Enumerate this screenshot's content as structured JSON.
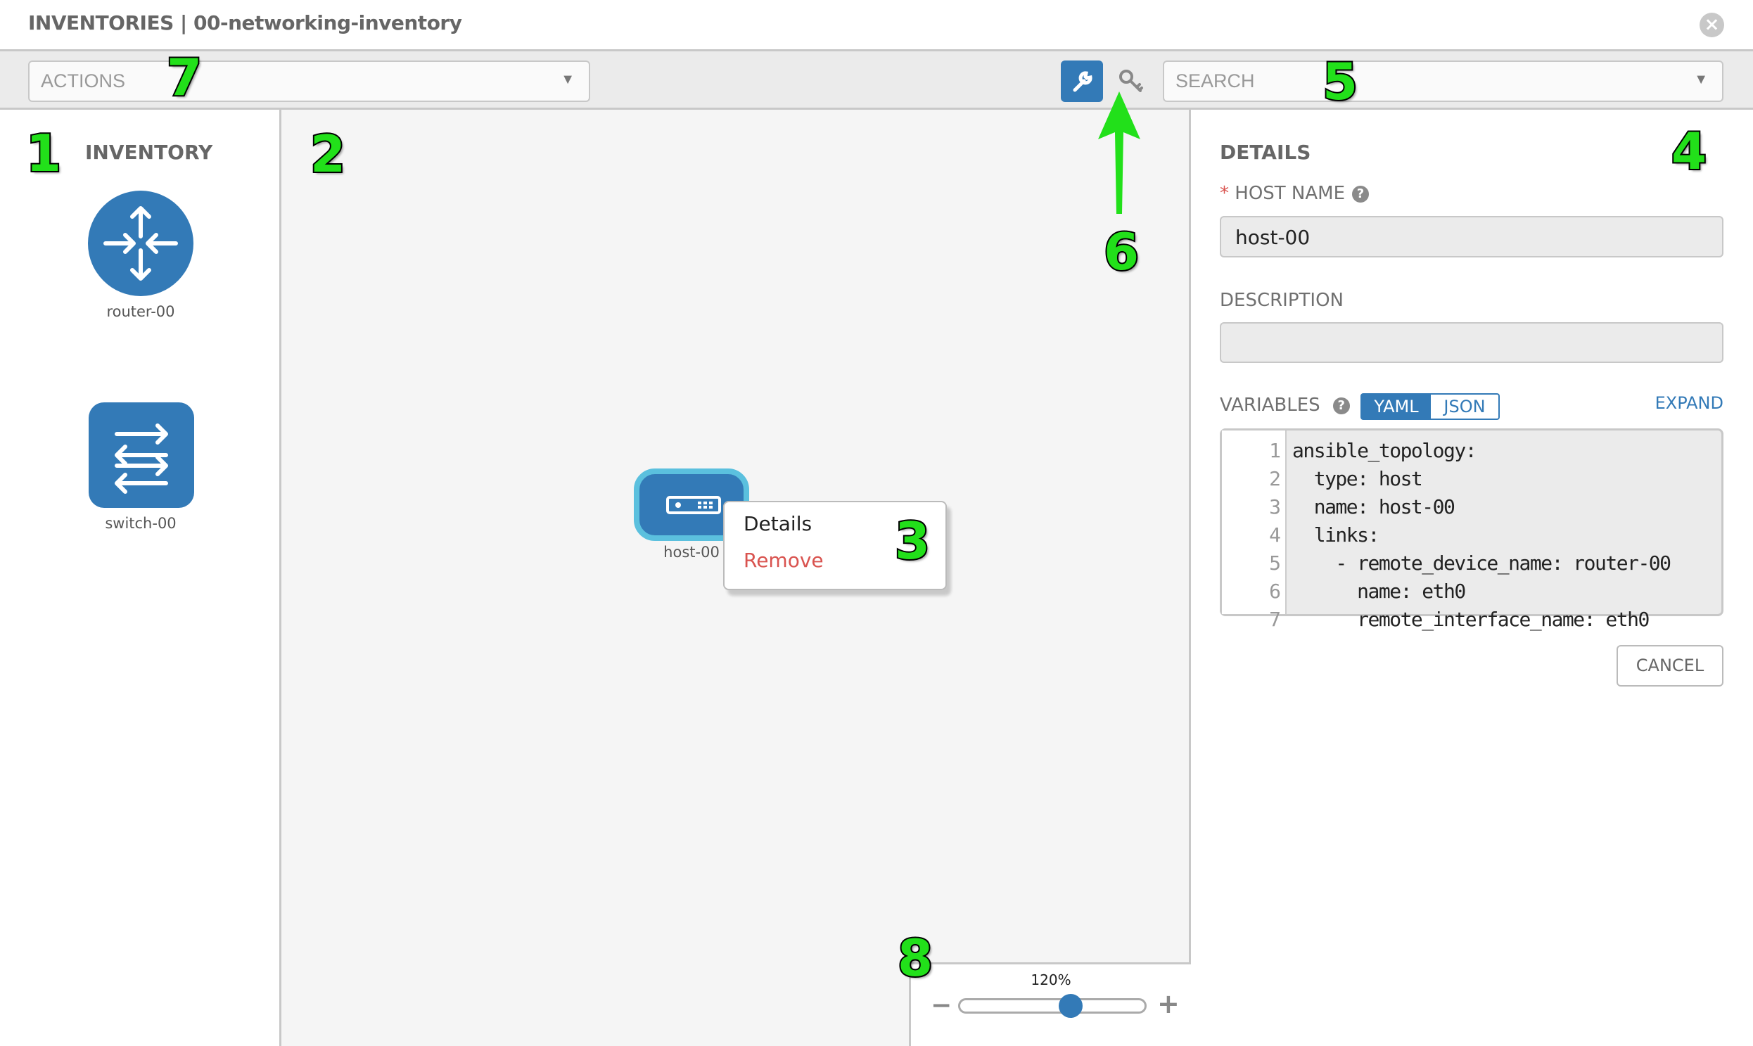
{
  "header": {
    "title": "INVENTORIES | 00-networking-inventory",
    "close_icon": "close-circle-icon"
  },
  "toolbar": {
    "actions_placeholder": "ACTIONS",
    "search_placeholder": "SEARCH",
    "wrench_icon": "wrench-icon",
    "key_icon": "key-icon"
  },
  "inventory": {
    "title": "INVENTORY",
    "items": [
      {
        "label": "router-00",
        "icon": "router-icon"
      },
      {
        "label": "switch-00",
        "icon": "switch-icon"
      }
    ]
  },
  "canvas": {
    "host": {
      "label": "host-00",
      "icon": "host-icon"
    },
    "context_menu": {
      "details": "Details",
      "remove": "Remove"
    },
    "zoom": {
      "label": "120%",
      "level": 0.6,
      "minus": "−",
      "plus": "+"
    }
  },
  "details": {
    "title": "DETAILS",
    "host_name_label": "HOST NAME",
    "required_mark": "*",
    "host_name_value": "host-00",
    "description_label": "DESCRIPTION",
    "description_value": "",
    "variables_label": "VARIABLES",
    "yaml": "YAML",
    "json": "JSON",
    "expand": "EXPAND",
    "cancel": "CANCEL",
    "code": [
      "ansible_topology:",
      "  type: host",
      "  name: host-00",
      "  links:",
      "    - remote_device_name: router-00",
      "      name: eth0",
      "      remote_interface_name: eth0"
    ]
  },
  "annotations": [
    "1",
    "2",
    "3",
    "4",
    "5",
    "6",
    "7",
    "8"
  ],
  "colors": {
    "accent": "#337ab7",
    "annotation": "#22e01a",
    "danger": "#d9534f",
    "host_border": "#5bc0de"
  }
}
